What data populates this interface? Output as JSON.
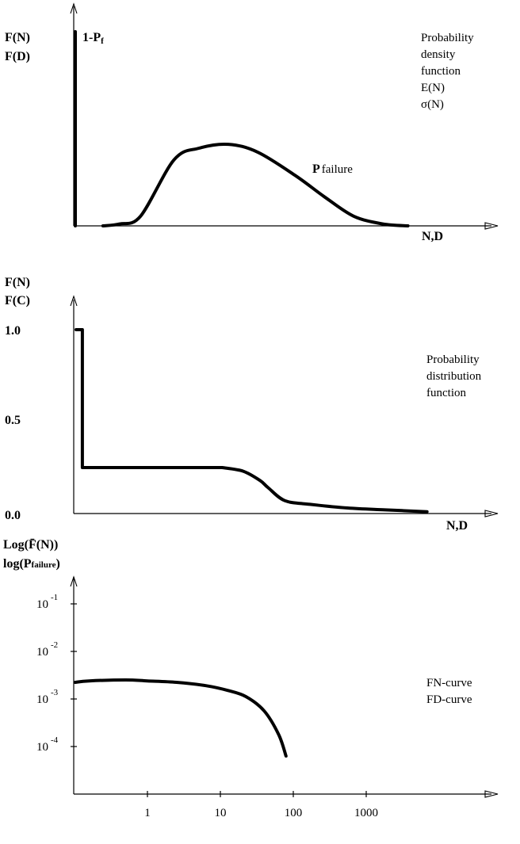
{
  "chart_data": [
    {
      "type": "line",
      "ylabel_lines": [
        "F(N)",
        "F(D)"
      ],
      "xlabel": "N,D",
      "annotations": {
        "spike_label": "1-P",
        "spike_label_sub": "f",
        "curve_label_bold": "P",
        "curve_label": "failure"
      },
      "description_lines": [
        "Probability",
        "density",
        "function",
        "E(N)",
        "σ(N)"
      ],
      "series": [
        {
          "spike_value": 1.0,
          "x": [
            0.07,
            0.11,
            0.16,
            0.24,
            0.3,
            0.37,
            0.44,
            0.53,
            0.6,
            0.67,
            0.74,
            0.8
          ],
          "y": [
            0.0,
            0.01,
            0.05,
            0.34,
            0.4,
            0.42,
            0.38,
            0.26,
            0.15,
            0.05,
            0.01,
            0.0
          ]
        }
      ]
    },
    {
      "type": "line",
      "ylabel_lines": [
        "F(N)",
        "F(C)"
      ],
      "xlabel": "N,D",
      "description_lines": [
        "Probability",
        "distribution",
        "function"
      ],
      "yticks": [
        "1.0",
        "0.5",
        "0.0"
      ],
      "series": [
        {
          "x": [
            0.0,
            0.0,
            0.015,
            0.015,
            0.35,
            0.4,
            0.44,
            0.46,
            0.5,
            0.56,
            0.65,
            0.74,
            0.84
          ],
          "y": [
            1.0,
            1.0,
            1.0,
            0.25,
            0.25,
            0.23,
            0.18,
            0.14,
            0.07,
            0.05,
            0.03,
            0.02,
            0.01
          ]
        }
      ]
    },
    {
      "type": "line",
      "ylabel_lines": [
        "Log(F̄(N))",
        "log(P"
      ],
      "ylabel_sub": "failure",
      "ylabel_close": ")",
      "description_lines": [
        "FN-curve",
        "FD-curve"
      ],
      "yticks": [
        {
          "base": "10",
          "exp": "-1"
        },
        {
          "base": "10",
          "exp": "-2"
        },
        {
          "base": "10",
          "exp": "-3"
        },
        {
          "base": "10",
          "exp": "-4"
        }
      ],
      "xticks": [
        "1",
        "10",
        "100",
        "1000"
      ],
      "series": [
        {
          "x_log10": [
            -1.35,
            -0.8,
            -0.3,
            0.0,
            0.4,
            0.8,
            1.1,
            1.35,
            1.6,
            1.8,
            1.9
          ],
          "y_log10": [
            -2.65,
            -2.62,
            -2.6,
            -2.62,
            -2.65,
            -2.72,
            -2.82,
            -2.95,
            -3.25,
            -3.75,
            -4.2
          ]
        }
      ]
    }
  ]
}
